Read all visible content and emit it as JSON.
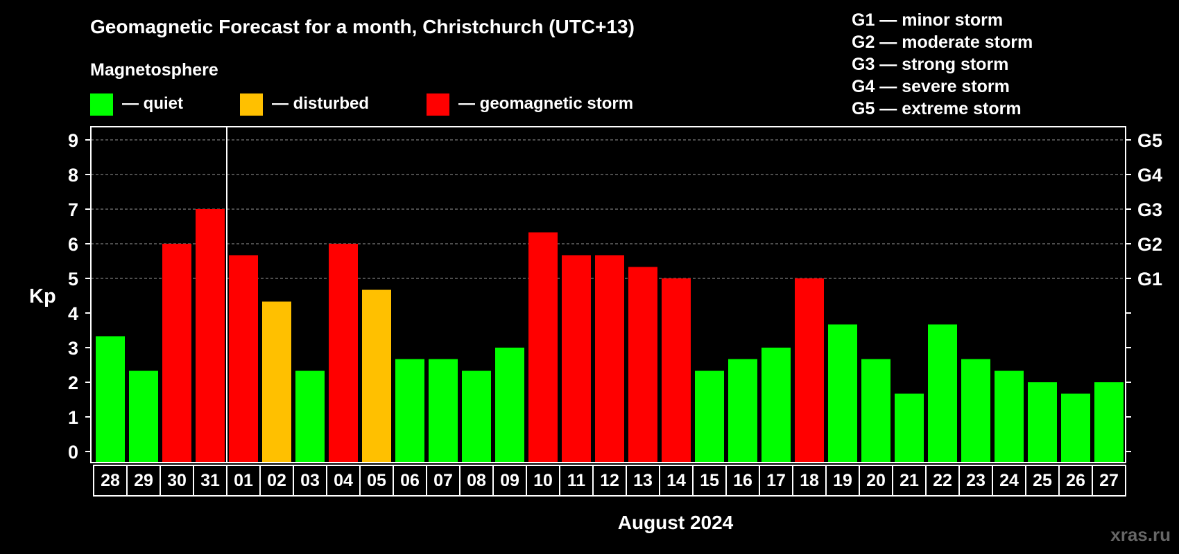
{
  "title": "Geomagnetic Forecast for a month, Christchurch (UTC+13)",
  "legend_heading": "Magnetosphere",
  "legend": [
    {
      "label": "— quiet",
      "color": "#00ff00"
    },
    {
      "label": "— disturbed",
      "color": "#ffc000"
    },
    {
      "label": "— geomagnetic storm",
      "color": "#ff0000"
    }
  ],
  "storm_scale": [
    "G1 — minor storm",
    "G2 — moderate storm",
    "G3 — strong storm",
    "G4 — severe storm",
    "G5 — extreme storm"
  ],
  "watermark": "xras.ru",
  "colors": {
    "quiet": "#00ff00",
    "disturbed": "#ffc000",
    "storm": "#ff0000",
    "background": "#000000",
    "axis": "#ffffff"
  },
  "chart_data": {
    "type": "bar",
    "ylabel": "Kp",
    "xlabel": "August 2024",
    "ylim": [
      0,
      9
    ],
    "yticks": [
      0,
      1,
      2,
      3,
      4,
      5,
      6,
      7,
      8,
      9
    ],
    "right_axis_labels": [
      {
        "kp": 5,
        "label": "G1"
      },
      {
        "kp": 6,
        "label": "G2"
      },
      {
        "kp": 7,
        "label": "G3"
      },
      {
        "kp": 8,
        "label": "G4"
      },
      {
        "kp": 9,
        "label": "G5"
      }
    ],
    "grid": "dashed horizontal at Kp 5–9",
    "month_divider_after": "31",
    "categories": [
      "28",
      "29",
      "30",
      "31",
      "01",
      "02",
      "03",
      "04",
      "05",
      "06",
      "07",
      "08",
      "09",
      "10",
      "11",
      "12",
      "13",
      "14",
      "15",
      "16",
      "17",
      "18",
      "19",
      "20",
      "21",
      "22",
      "23",
      "24",
      "25",
      "26",
      "27"
    ],
    "values": [
      3.33,
      2.33,
      6,
      7,
      5.67,
      4.33,
      2.33,
      6,
      4.67,
      2.67,
      2.67,
      2.33,
      3,
      6.33,
      5.67,
      5.67,
      5.33,
      5,
      2.33,
      2.67,
      3,
      5,
      3.67,
      2.67,
      1.67,
      3.67,
      2.67,
      2.33,
      2,
      1.67,
      2
    ],
    "levels": [
      "quiet",
      "quiet",
      "storm",
      "storm",
      "storm",
      "disturbed",
      "quiet",
      "storm",
      "disturbed",
      "quiet",
      "quiet",
      "quiet",
      "quiet",
      "storm",
      "storm",
      "storm",
      "storm",
      "storm",
      "quiet",
      "quiet",
      "quiet",
      "storm",
      "quiet",
      "quiet",
      "quiet",
      "quiet",
      "quiet",
      "quiet",
      "quiet",
      "quiet",
      "quiet"
    ]
  }
}
